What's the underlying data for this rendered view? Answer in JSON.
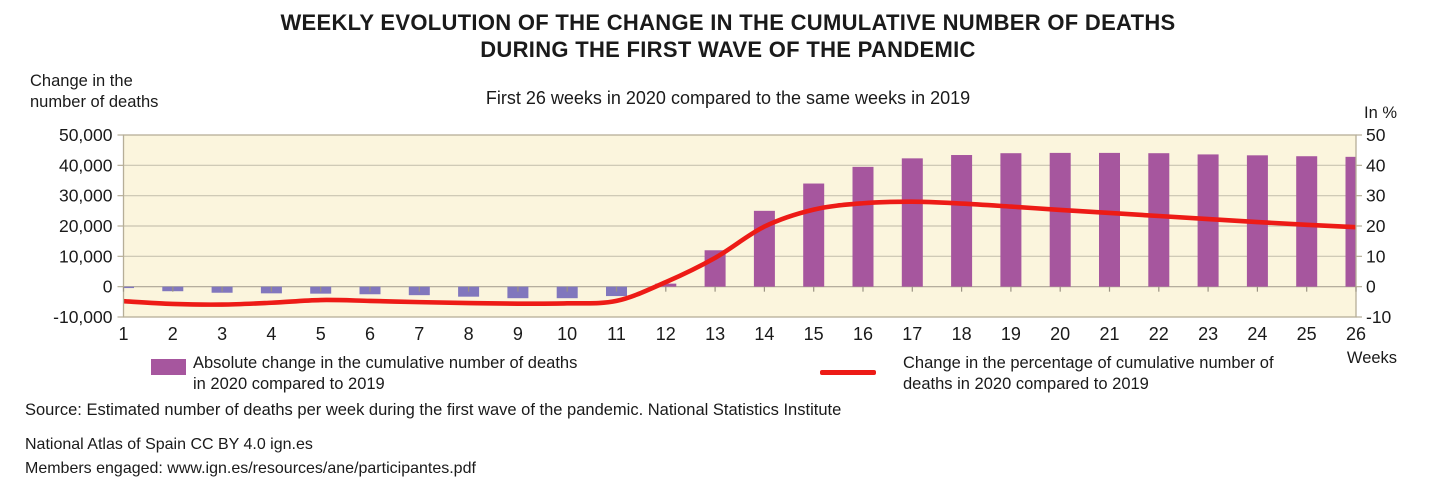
{
  "title": {
    "line1": "WEEKLY EVOLUTION OF THE CHANGE IN THE CUMULATIVE NUMBER OF DEATHS",
    "line2": "DURING THE FIRST WAVE OF THE PANDEMIC"
  },
  "subtitle": "First 26 weeks in 2020 compared to the same weeks in 2019",
  "left_axis_title": {
    "line1": "Change in the",
    "line2": "number of deaths"
  },
  "right_axis_title": "In %",
  "x_axis_title": "Weeks",
  "legend": {
    "bars": {
      "line1": "Absolute change in the cumulative number of deaths",
      "line2": "in 2020 compared to 2019"
    },
    "line": {
      "line1": "Change in the percentage of cumulative number of",
      "line2": "deaths in 2020 compared to 2019"
    }
  },
  "source": "Source: Estimated number of deaths per week during the first wave of the pandemic. National Statistics Institute",
  "footer": {
    "line1": "National Atlas of Spain CC BY 4.0 ign.es",
    "line2": "Members engaged: www.ign.es/resources/ane/participantes.pdf"
  },
  "colors": {
    "bar_positive": "#A6569E",
    "bar_negative": "#8177BD",
    "line_red": "#ED1B16",
    "plot_background": "#FBF5DD",
    "plot_border": "#B6AE98",
    "grid": "#C9C3B1",
    "zero_line": "#ABA494",
    "tick": "#9A9283",
    "text": "#1A1A1A"
  },
  "chart_data": {
    "type": "combo-bar-line",
    "categories": [
      1,
      2,
      3,
      4,
      5,
      6,
      7,
      8,
      9,
      10,
      11,
      12,
      13,
      14,
      15,
      16,
      17,
      18,
      19,
      20,
      21,
      22,
      23,
      24,
      25,
      26
    ],
    "series": [
      {
        "name": "Absolute change in the cumulative number of deaths in 2020 compared to 2019",
        "type": "bar",
        "axis": "left",
        "values": [
          -400,
          -1500,
          -2000,
          -2200,
          -2300,
          -2500,
          -2800,
          -3300,
          -3800,
          -3800,
          -3100,
          1000,
          12000,
          25000,
          34000,
          39500,
          42300,
          43400,
          44000,
          44100,
          44100,
          44000,
          43600,
          43300,
          43000,
          42800
        ]
      },
      {
        "name": "Change in the percentage of cumulative number of deaths in 2020 compared to 2019",
        "type": "line",
        "axis": "right",
        "values": [
          -4.8,
          -5.7,
          -5.9,
          -5.3,
          -4.4,
          -4.7,
          -5.1,
          -5.4,
          -5.6,
          -5.5,
          -4.7,
          1.5,
          9.5,
          19.8,
          25.4,
          27.5,
          28.0,
          27.4,
          26.4,
          25.3,
          24.3,
          23.3,
          22.3,
          21.3,
          20.4,
          19.6
        ]
      }
    ],
    "left_axis": {
      "min": -10000,
      "max": 50000,
      "step": 10000,
      "tick_labels": [
        "50,000",
        "40,000",
        "30,000",
        "20,000",
        "10,000",
        "0",
        "-10,000"
      ]
    },
    "right_axis": {
      "min": -10,
      "max": 50,
      "step": 10,
      "tick_labels": [
        "50",
        "40",
        "30",
        "20",
        "10",
        "0",
        "-10"
      ]
    },
    "grid": true,
    "legend_position": "bottom",
    "title": "WEEKLY EVOLUTION OF THE CHANGE IN THE CUMULATIVE NUMBER OF DEATHS DURING THE FIRST WAVE OF THE PANDEMIC",
    "subtitle": "First 26 weeks in 2020 compared to the same weeks in 2019",
    "xlabel": "Weeks",
    "ylabel_left": "Change in the number of deaths",
    "ylabel_right": "In %"
  }
}
